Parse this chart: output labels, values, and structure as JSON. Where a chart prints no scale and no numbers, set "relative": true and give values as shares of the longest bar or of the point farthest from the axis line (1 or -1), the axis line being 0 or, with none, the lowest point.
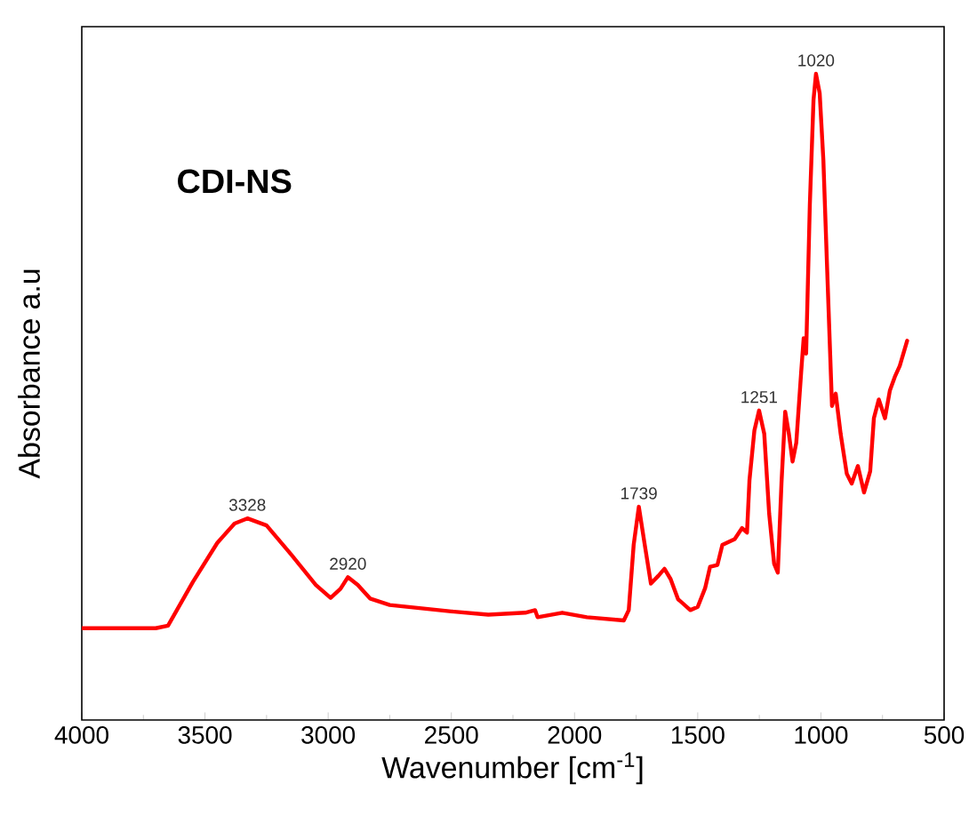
{
  "chart_data": {
    "type": "line",
    "title": "CDI-NS",
    "xlabel": "Wavenumber [cm$^{-1}$]",
    "ylabel": "Absorbance a.u",
    "relative": true,
    "xlim": [
      4000,
      500
    ],
    "xticks": [
      4000,
      3500,
      3000,
      2500,
      2000,
      1500,
      1000,
      500
    ],
    "x": [
      4000,
      3700,
      3650,
      3550,
      3450,
      3380,
      3328,
      3250,
      3150,
      3050,
      2990,
      2950,
      2920,
      2880,
      2830,
      2750,
      2500,
      2350,
      2200,
      2160,
      2150,
      2050,
      1950,
      1800,
      1780,
      1760,
      1739,
      1715,
      1690,
      1660,
      1635,
      1610,
      1580,
      1530,
      1500,
      1470,
      1450,
      1420,
      1400,
      1350,
      1320,
      1300,
      1290,
      1270,
      1251,
      1230,
      1210,
      1190,
      1175,
      1160,
      1145,
      1130,
      1115,
      1100,
      1080,
      1070,
      1060,
      1045,
      1030,
      1020,
      1005,
      990,
      975,
      955,
      940,
      920,
      895,
      875,
      850,
      825,
      800,
      785,
      765,
      740,
      720,
      700,
      680,
      650
    ],
    "series": [
      {
        "color": "#ff0000",
        "values": [
          0.142,
          0.142,
          0.146,
          0.213,
          0.274,
          0.304,
          0.312,
          0.301,
          0.256,
          0.209,
          0.189,
          0.203,
          0.221,
          0.209,
          0.188,
          0.178,
          0.168,
          0.163,
          0.166,
          0.17,
          0.159,
          0.166,
          0.159,
          0.154,
          0.17,
          0.271,
          0.33,
          0.271,
          0.211,
          0.223,
          0.234,
          0.218,
          0.187,
          0.17,
          0.175,
          0.204,
          0.237,
          0.24,
          0.271,
          0.28,
          0.297,
          0.29,
          0.371,
          0.448,
          0.479,
          0.443,
          0.319,
          0.242,
          0.228,
          0.367,
          0.477,
          0.443,
          0.4,
          0.429,
          0.539,
          0.591,
          0.567,
          0.797,
          0.96,
          1.0,
          0.97,
          0.866,
          0.701,
          0.486,
          0.505,
          0.443,
          0.381,
          0.366,
          0.393,
          0.352,
          0.385,
          0.467,
          0.496,
          0.467,
          0.51,
          0.531,
          0.548,
          0.587
        ]
      }
    ],
    "annotations": [
      {
        "text": "3328",
        "x": 3328,
        "y": 0.312
      },
      {
        "text": "2920",
        "x": 2920,
        "y": 0.221
      },
      {
        "text": "1739",
        "x": 1739,
        "y": 0.33
      },
      {
        "text": "1251",
        "x": 1251,
        "y": 0.479
      },
      {
        "text": "1020",
        "x": 1020,
        "y": 1.0
      }
    ],
    "marker": "none",
    "line_style": "solid"
  }
}
